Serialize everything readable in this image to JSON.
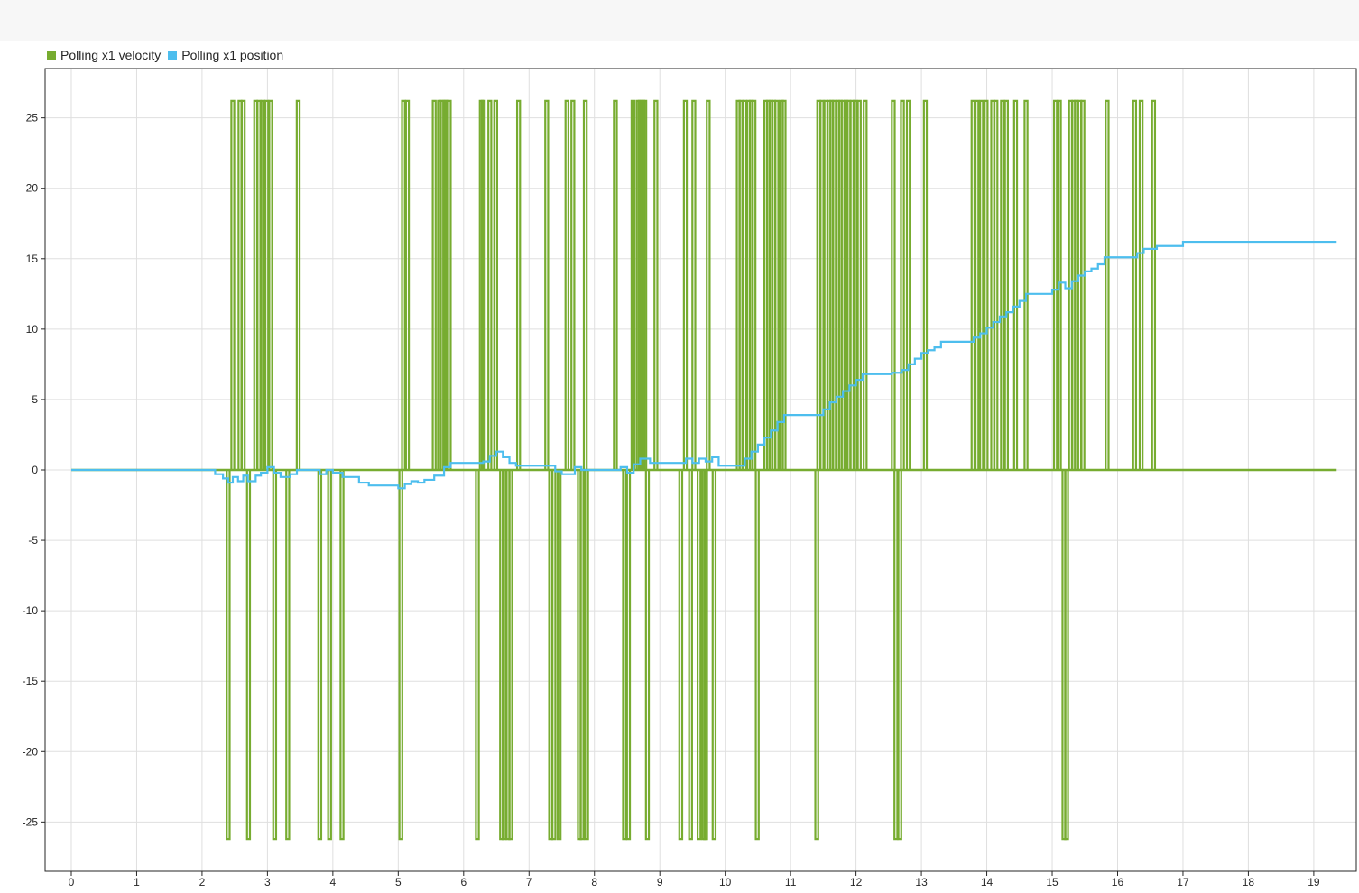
{
  "colors": {
    "velocity": "#77AC30",
    "position": "#4DBEEE",
    "grid": "#dfdfdf",
    "axis": "#262626",
    "background": "#ffffff"
  },
  "chart_data": {
    "type": "line",
    "xlim": [
      -0.4,
      19.65
    ],
    "ylim": [
      -28.5,
      28.5
    ],
    "x_ticks": [
      0,
      1,
      2,
      3,
      4,
      5,
      6,
      7,
      8,
      9,
      10,
      11,
      12,
      13,
      14,
      15,
      16,
      17,
      18,
      19
    ],
    "y_ticks": [
      25,
      20,
      15,
      10,
      5,
      0,
      -5,
      -10,
      -15,
      -20,
      -25
    ],
    "grid": true,
    "legend_position": "top-left",
    "series": [
      {
        "name": "Polling x1 velocity",
        "style": "stairs",
        "color": "#77AC30",
        "baseline": 0,
        "pulses": [
          {
            "x": 2.4,
            "y": -26.2
          },
          {
            "x": 2.47,
            "y": 26.2
          },
          {
            "x": 2.58,
            "y": 26.2
          },
          {
            "x": 2.63,
            "y": 26.2
          },
          {
            "x": 2.71,
            "y": -26.2
          },
          {
            "x": 2.82,
            "y": 26.2
          },
          {
            "x": 2.87,
            "y": 26.2
          },
          {
            "x": 2.93,
            "y": 26.2
          },
          {
            "x": 2.99,
            "y": 26.2
          },
          {
            "x": 3.05,
            "y": 26.2
          },
          {
            "x": 3.11,
            "y": -26.2
          },
          {
            "x": 3.31,
            "y": -26.2
          },
          {
            "x": 3.47,
            "y": 26.2
          },
          {
            "x": 3.8,
            "y": -26.2
          },
          {
            "x": 3.95,
            "y": -26.2
          },
          {
            "x": 4.14,
            "y": -26.2
          },
          {
            "x": 5.04,
            "y": -26.2
          },
          {
            "x": 5.08,
            "y": 26.2
          },
          {
            "x": 5.14,
            "y": 26.2
          },
          {
            "x": 5.55,
            "y": 26.2
          },
          {
            "x": 5.63,
            "y": 26.2
          },
          {
            "x": 5.67,
            "y": 26.2
          },
          {
            "x": 5.71,
            "y": 26.2
          },
          {
            "x": 5.74,
            "y": 26.2
          },
          {
            "x": 5.78,
            "y": 26.2
          },
          {
            "x": 6.21,
            "y": -26.2
          },
          {
            "x": 6.27,
            "y": 26.2
          },
          {
            "x": 6.3,
            "y": 26.2
          },
          {
            "x": 6.4,
            "y": 26.2
          },
          {
            "x": 6.49,
            "y": 26.2
          },
          {
            "x": 6.58,
            "y": -26.2
          },
          {
            "x": 6.62,
            "y": -26.2
          },
          {
            "x": 6.68,
            "y": -26.2
          },
          {
            "x": 6.72,
            "y": -26.2
          },
          {
            "x": 6.84,
            "y": 26.2
          },
          {
            "x": 7.27,
            "y": 26.2
          },
          {
            "x": 7.33,
            "y": -26.2
          },
          {
            "x": 7.38,
            "y": -26.2
          },
          {
            "x": 7.46,
            "y": -26.2
          },
          {
            "x": 7.58,
            "y": 26.2
          },
          {
            "x": 7.67,
            "y": 26.2
          },
          {
            "x": 7.77,
            "y": -26.2
          },
          {
            "x": 7.81,
            "y": -26.2
          },
          {
            "x": 7.86,
            "y": 26.2
          },
          {
            "x": 7.88,
            "y": -26.2
          },
          {
            "x": 8.32,
            "y": 26.2
          },
          {
            "x": 8.46,
            "y": -26.2
          },
          {
            "x": 8.52,
            "y": -26.2
          },
          {
            "x": 8.59,
            "y": 26.2
          },
          {
            "x": 8.67,
            "y": 26.2
          },
          {
            "x": 8.7,
            "y": 26.2
          },
          {
            "x": 8.74,
            "y": 26.2
          },
          {
            "x": 8.77,
            "y": 26.2
          },
          {
            "x": 8.81,
            "y": -26.2
          },
          {
            "x": 8.94,
            "y": 26.2
          },
          {
            "x": 9.32,
            "y": -26.2
          },
          {
            "x": 9.39,
            "y": 26.2
          },
          {
            "x": 9.47,
            "y": -26.2
          },
          {
            "x": 9.52,
            "y": 26.2
          },
          {
            "x": 9.6,
            "y": -26.2
          },
          {
            "x": 9.67,
            "y": -26.2
          },
          {
            "x": 9.7,
            "y": -26.2
          },
          {
            "x": 9.74,
            "y": 26.2
          },
          {
            "x": 9.83,
            "y": -26.2
          },
          {
            "x": 10.2,
            "y": 26.2
          },
          {
            "x": 10.24,
            "y": 26.2
          },
          {
            "x": 10.3,
            "y": 26.2
          },
          {
            "x": 10.36,
            "y": 26.2
          },
          {
            "x": 10.4,
            "y": 26.2
          },
          {
            "x": 10.44,
            "y": 26.2
          },
          {
            "x": 10.49,
            "y": -26.2
          },
          {
            "x": 10.62,
            "y": 26.2
          },
          {
            "x": 10.66,
            "y": 26.2
          },
          {
            "x": 10.7,
            "y": 26.2
          },
          {
            "x": 10.74,
            "y": 26.2
          },
          {
            "x": 10.79,
            "y": 26.2
          },
          {
            "x": 10.86,
            "y": 26.2
          },
          {
            "x": 10.9,
            "y": 26.2
          },
          {
            "x": 11.4,
            "y": -26.2
          },
          {
            "x": 11.43,
            "y": 26.2
          },
          {
            "x": 11.48,
            "y": 26.2
          },
          {
            "x": 11.54,
            "y": 26.2
          },
          {
            "x": 11.59,
            "y": 26.2
          },
          {
            "x": 11.63,
            "y": 26.2
          },
          {
            "x": 11.67,
            "y": 26.2
          },
          {
            "x": 11.72,
            "y": 26.2
          },
          {
            "x": 11.76,
            "y": 26.2
          },
          {
            "x": 11.8,
            "y": 26.2
          },
          {
            "x": 11.85,
            "y": 26.2
          },
          {
            "x": 11.89,
            "y": 26.2
          },
          {
            "x": 11.94,
            "y": 26.2
          },
          {
            "x": 11.99,
            "y": 26.2
          },
          {
            "x": 12.05,
            "y": 26.2
          },
          {
            "x": 12.14,
            "y": 26.2
          },
          {
            "x": 12.57,
            "y": 26.2
          },
          {
            "x": 12.61,
            "y": -26.2
          },
          {
            "x": 12.67,
            "y": -26.2
          },
          {
            "x": 12.71,
            "y": 26.2
          },
          {
            "x": 12.8,
            "y": 26.2
          },
          {
            "x": 13.06,
            "y": 26.2
          },
          {
            "x": 13.79,
            "y": 26.2
          },
          {
            "x": 13.85,
            "y": 26.2
          },
          {
            "x": 13.92,
            "y": 26.2
          },
          {
            "x": 13.99,
            "y": 26.2
          },
          {
            "x": 14.09,
            "y": 26.2
          },
          {
            "x": 14.14,
            "y": 26.2
          },
          {
            "x": 14.24,
            "y": 26.2
          },
          {
            "x": 14.3,
            "y": 26.2
          },
          {
            "x": 14.44,
            "y": 26.2
          },
          {
            "x": 14.6,
            "y": 26.2
          },
          {
            "x": 15.05,
            "y": 26.2
          },
          {
            "x": 15.11,
            "y": 26.2
          },
          {
            "x": 15.18,
            "y": -26.2
          },
          {
            "x": 15.22,
            "y": -26.2
          },
          {
            "x": 15.28,
            "y": 26.2
          },
          {
            "x": 15.33,
            "y": 26.2
          },
          {
            "x": 15.37,
            "y": 26.2
          },
          {
            "x": 15.42,
            "y": 26.2
          },
          {
            "x": 15.47,
            "y": 26.2
          },
          {
            "x": 15.84,
            "y": 26.2
          },
          {
            "x": 16.26,
            "y": 26.2
          },
          {
            "x": 16.36,
            "y": 26.2
          },
          {
            "x": 16.55,
            "y": 26.2
          }
        ],
        "x_end": 19.35
      },
      {
        "name": "Polling x1 position",
        "style": "stairs",
        "color": "#4DBEEE",
        "x": [
          0,
          2.1,
          2.2,
          2.32,
          2.4,
          2.47,
          2.55,
          2.63,
          2.7,
          2.82,
          2.9,
          3.0,
          3.1,
          3.2,
          3.35,
          3.45,
          3.55,
          3.8,
          3.9,
          4.0,
          4.15,
          4.4,
          4.55,
          4.7,
          5.0,
          5.1,
          5.2,
          5.3,
          5.4,
          5.55,
          5.7,
          5.8,
          6.2,
          6.3,
          6.4,
          6.5,
          6.6,
          6.7,
          6.8,
          7.3,
          7.4,
          7.5,
          7.7,
          7.8,
          8.3,
          8.4,
          8.5,
          8.6,
          8.7,
          8.85,
          9.3,
          9.4,
          9.5,
          9.6,
          9.7,
          9.8,
          9.9,
          10.2,
          10.3,
          10.4,
          10.5,
          10.6,
          10.7,
          10.8,
          10.9,
          11.4,
          11.5,
          11.6,
          11.7,
          11.8,
          11.9,
          12.0,
          12.1,
          12.2,
          12.55,
          12.7,
          12.8,
          12.9,
          13.0,
          13.1,
          13.2,
          13.3,
          13.4,
          13.8,
          13.9,
          14.0,
          14.1,
          14.2,
          14.3,
          14.4,
          14.5,
          14.6,
          14.75,
          15.0,
          15.1,
          15.2,
          15.3,
          15.4,
          15.5,
          15.6,
          15.7,
          15.8,
          16.1,
          16.3,
          16.4,
          16.6,
          17.0,
          19.35
        ],
        "y": [
          0,
          0,
          -0.3,
          -0.6,
          -0.9,
          -0.5,
          -0.8,
          -0.4,
          -0.8,
          -0.4,
          -0.2,
          0.2,
          -0.2,
          -0.5,
          -0.3,
          0.0,
          0.0,
          -0.3,
          0.0,
          -0.2,
          -0.5,
          -0.9,
          -1.1,
          -1.1,
          -1.3,
          -1.0,
          -0.8,
          -0.9,
          -0.7,
          -0.4,
          0.2,
          0.5,
          0.5,
          0.6,
          1.0,
          1.3,
          0.9,
          0.5,
          0.3,
          0.3,
          -0.1,
          -0.3,
          0.2,
          0.0,
          0.0,
          0.2,
          -0.2,
          0.4,
          0.8,
          0.5,
          0.5,
          0.8,
          0.5,
          0.8,
          0.6,
          0.9,
          0.3,
          0.3,
          0.8,
          1.3,
          1.8,
          2.3,
          2.8,
          3.4,
          3.9,
          3.9,
          4.3,
          4.8,
          5.2,
          5.6,
          6.0,
          6.4,
          6.8,
          6.8,
          6.9,
          7.1,
          7.5,
          7.9,
          8.3,
          8.5,
          8.7,
          9.1,
          9.1,
          9.4,
          9.7,
          10.1,
          10.5,
          10.9,
          11.2,
          11.6,
          12.0,
          12.5,
          12.5,
          12.8,
          13.3,
          12.9,
          13.4,
          13.8,
          14.1,
          14.3,
          14.6,
          15.1,
          15.1,
          15.4,
          15.7,
          15.9,
          16.2,
          16.2
        ]
      }
    ]
  }
}
